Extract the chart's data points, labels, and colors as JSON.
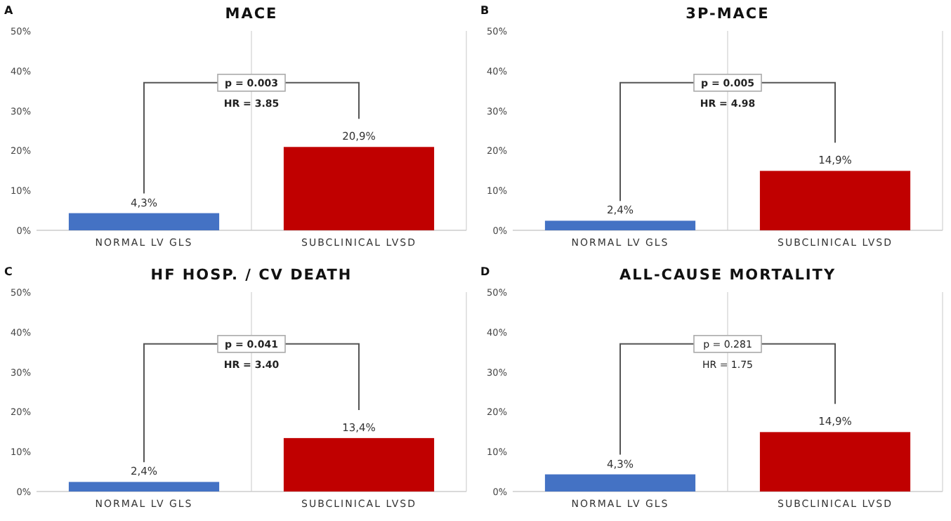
{
  "chart_data": [
    {
      "type": "bar",
      "title": "MACE",
      "categories": [
        "NORMAL LV GLS",
        "SUBCLINICAL LVSD"
      ],
      "values": [
        4.3,
        20.9
      ],
      "colors": [
        "#4472c4",
        "#c00000"
      ],
      "value_labels": [
        "4,3%",
        "20,9%"
      ],
      "ylim": [
        0,
        50
      ],
      "yticks": [
        {
          "value": 0,
          "label": "0%"
        },
        {
          "value": 10,
          "label": "10%"
        },
        {
          "value": 20,
          "label": "20%"
        },
        {
          "value": 30,
          "label": "30%"
        },
        {
          "value": 40,
          "label": "40%"
        },
        {
          "value": 50,
          "label": "50%"
        }
      ],
      "grid": "x",
      "annotations": [
        "A",
        "p = 0.003",
        "HR = 3.85"
      ]
    },
    {
      "type": "bar",
      "title": "3P-MACE",
      "categories": [
        "NORMAL LV GLS",
        "SUBCLINICAL LVSD"
      ],
      "values": [
        2.4,
        14.9
      ],
      "colors": [
        "#4472c4",
        "#c00000"
      ],
      "value_labels": [
        "2,4%",
        "14,9%"
      ],
      "ylim": [
        0,
        50
      ],
      "yticks": [
        {
          "value": 0,
          "label": "0%"
        },
        {
          "value": 10,
          "label": "10%"
        },
        {
          "value": 20,
          "label": "20%"
        },
        {
          "value": 30,
          "label": "30%"
        },
        {
          "value": 40,
          "label": "40%"
        },
        {
          "value": 50,
          "label": "50%"
        }
      ],
      "grid": "x",
      "annotations": [
        "B",
        "p = 0.005",
        "HR = 4.98"
      ]
    },
    {
      "type": "bar",
      "title": "HF HOSP. / CV DEATH",
      "categories": [
        "NORMAL LV GLS",
        "SUBCLINICAL LVSD"
      ],
      "values": [
        2.4,
        13.4
      ],
      "colors": [
        "#4472c4",
        "#c00000"
      ],
      "value_labels": [
        "2,4%",
        "13,4%"
      ],
      "ylim": [
        0,
        50
      ],
      "yticks": [
        {
          "value": 0,
          "label": "0%"
        },
        {
          "value": 10,
          "label": "10%"
        },
        {
          "value": 20,
          "label": "20%"
        },
        {
          "value": 30,
          "label": "30%"
        },
        {
          "value": 40,
          "label": "40%"
        },
        {
          "value": 50,
          "label": "50%"
        }
      ],
      "grid": "x",
      "annotations": [
        "C",
        "p = 0.041",
        "HR = 3.40"
      ]
    },
    {
      "type": "bar",
      "title": "ALL-CAUSE MORTALITY",
      "categories": [
        "NORMAL LV GLS",
        "SUBCLINICAL LVSD"
      ],
      "values": [
        4.3,
        14.9
      ],
      "colors": [
        "#4472c4",
        "#c00000"
      ],
      "value_labels": [
        "4,3%",
        "14,9%"
      ],
      "ylim": [
        0,
        50
      ],
      "yticks": [
        {
          "value": 0,
          "label": "0%"
        },
        {
          "value": 10,
          "label": "10%"
        },
        {
          "value": 20,
          "label": "20%"
        },
        {
          "value": 30,
          "label": "30%"
        },
        {
          "value": 40,
          "label": "40%"
        },
        {
          "value": 50,
          "label": "50%"
        }
      ],
      "grid": "x",
      "annotations": [
        "D",
        "p = 0.281",
        "HR = 1.75"
      ]
    }
  ]
}
